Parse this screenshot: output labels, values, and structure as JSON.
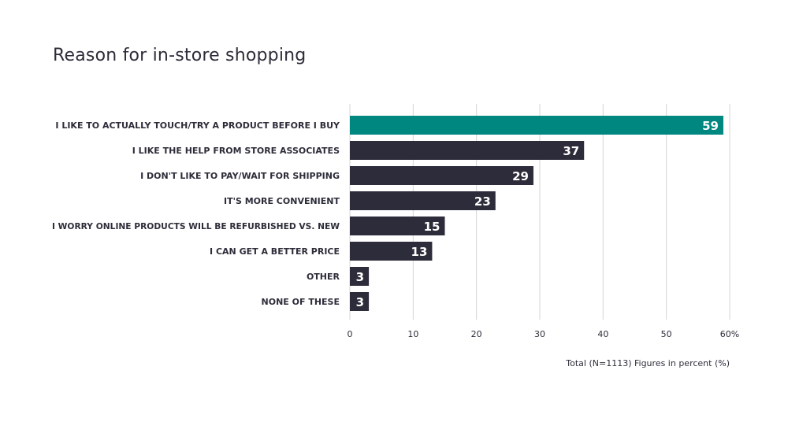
{
  "chart_data": {
    "type": "bar",
    "orientation": "horizontal",
    "title": "Reason for in-store shopping",
    "categories": [
      "I LIKE TO ACTUALLY TOUCH/TRY A PRODUCT BEFORE I BUY",
      "I LIKE THE HELP FROM STORE ASSOCIATES",
      "I DON'T LIKE TO PAY/WAIT FOR SHIPPING",
      "IT'S MORE CONVENIENT",
      "I WORRY ONLINE PRODUCTS WILL BE REFURBISHED VS. NEW",
      "I CAN GET A BETTER PRICE",
      "OTHER",
      "NONE OF THESE"
    ],
    "values": [
      59,
      37,
      29,
      23,
      15,
      13,
      3,
      3
    ],
    "xlim": [
      0,
      60
    ],
    "xticks": [
      "0",
      "10",
      "20",
      "30",
      "40",
      "50",
      "60%"
    ],
    "grid": true,
    "colors": {
      "highlight": "#00877f",
      "default": "#2d2c3b",
      "grid": "#d6d6d6",
      "text": "#2d2d3a"
    },
    "note": "Total (N=1113) Figures in percent (%)"
  }
}
